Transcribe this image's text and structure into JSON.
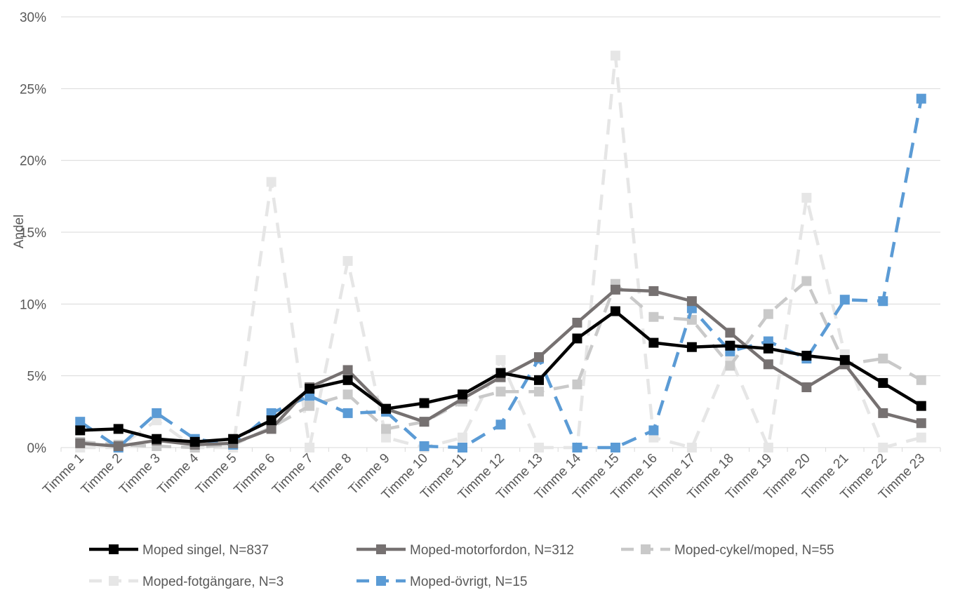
{
  "chart_data": {
    "type": "line",
    "ylabel": "Andel",
    "xlabel": "",
    "ylim": [
      0,
      30
    ],
    "yticks": [
      "0%",
      "5%",
      "10%",
      "15%",
      "20%",
      "25%",
      "30%"
    ],
    "ytick_values": [
      0,
      5,
      10,
      15,
      20,
      25,
      30
    ],
    "grid": "horizontal",
    "legend_position": "bottom",
    "categories": [
      "Timme 1",
      "Timme 2",
      "Timme 3",
      "Timme 4",
      "Timme 5",
      "Timme 6",
      "Timme 7",
      "Timme 8",
      "Timme 9",
      "Timme 10",
      "Timme 11",
      "Timme 12",
      "Timme 13",
      "Timme 14",
      "Timme 15",
      "Timme 16",
      "Timme 17",
      "Timme 18",
      "Timme 19",
      "Timme 20",
      "Timme 21",
      "Timme 22",
      "Timme 23"
    ],
    "series": [
      {
        "name": "Moped singel, N=837",
        "color": "#000000",
        "style": "solid",
        "values": [
          1.2,
          1.3,
          0.6,
          0.4,
          0.6,
          1.9,
          4.1,
          4.7,
          2.7,
          3.1,
          3.7,
          5.2,
          4.7,
          7.6,
          9.5,
          7.3,
          7.0,
          7.1,
          6.9,
          6.4,
          6.1,
          4.5,
          2.9
        ]
      },
      {
        "name": "Moped-motorfordon, N=312",
        "color": "#767171",
        "style": "solid",
        "values": [
          0.3,
          0.1,
          0.5,
          0.2,
          0.3,
          1.3,
          4.2,
          5.4,
          2.7,
          1.8,
          3.4,
          4.9,
          6.3,
          8.7,
          11.0,
          10.9,
          10.2,
          8.0,
          5.8,
          4.2,
          5.8,
          2.4,
          1.7
        ]
      },
      {
        "name": "Moped-cykel/moped, N=55",
        "color": "#c9c9c9",
        "style": "dashed",
        "values": [
          0.4,
          0.2,
          0.1,
          0.0,
          0.2,
          1.4,
          2.9,
          3.7,
          1.3,
          1.8,
          3.2,
          3.9,
          3.9,
          4.4,
          11.4,
          9.1,
          8.9,
          5.7,
          9.3,
          11.6,
          5.8,
          6.2,
          4.7
        ]
      },
      {
        "name": "Moped-fotgängare, N=3",
        "color": "#e6e6e6",
        "style": "dashed",
        "values": [
          0.0,
          0.0,
          1.9,
          0.0,
          0.0,
          18.5,
          0.0,
          13.0,
          0.7,
          0.0,
          0.7,
          6.1,
          0.0,
          0.0,
          27.3,
          0.7,
          0.0,
          6.3,
          0.0,
          17.4,
          6.5,
          0.0,
          0.7
        ]
      },
      {
        "name": "Moped-övrigt, N=15",
        "color": "#5b9bd5",
        "style": "dashed",
        "values": [
          1.8,
          0.0,
          2.4,
          0.6,
          0.2,
          2.4,
          3.6,
          2.4,
          2.5,
          0.1,
          0.0,
          1.6,
          6.2,
          0.0,
          0.0,
          1.2,
          9.7,
          6.7,
          7.4,
          6.2,
          10.3,
          10.2,
          24.3
        ]
      }
    ]
  }
}
